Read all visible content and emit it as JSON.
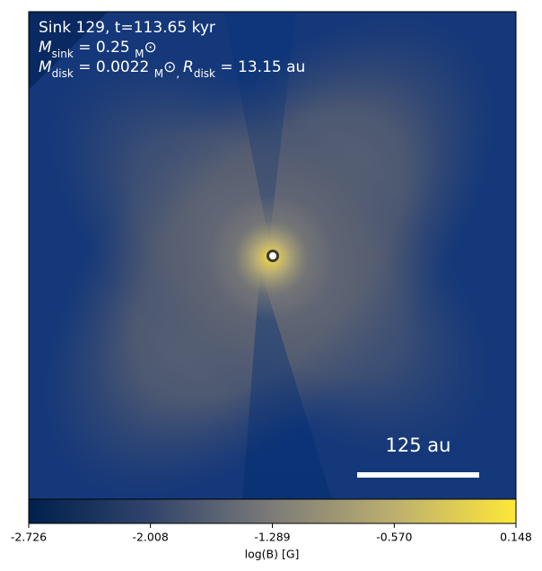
{
  "chart_data": {
    "type": "map",
    "annotations": [
      [
        "Sink 129, t=113.65 kyr"
      ],
      [
        "M",
        "sink",
        " = 0.25 ",
        "M",
        "⊙"
      ],
      [
        "M",
        "disk",
        " = 0.0022 ",
        "M",
        "⊙",
        ", ",
        "R",
        "disk",
        " = 13.15 au"
      ]
    ],
    "scale_bar": "125 au",
    "colorbar_label": "log(B) [G]",
    "colormap": [
      "#00204c",
      "#31446b",
      "#7c7b78",
      "#bcaf6f",
      "#fee838"
    ],
    "clim": [
      -2.726,
      0.148
    ],
    "cticks": [
      -2.726,
      -2.008,
      -1.289,
      {
        "value": -0.57,
        "label": "-0.570"
      },
      0.148
    ]
  }
}
